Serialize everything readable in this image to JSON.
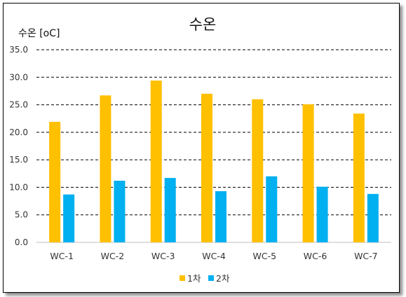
{
  "chart_data": {
    "type": "bar",
    "title": "수온",
    "ylabel": "수온 [oC]",
    "xlabel": "",
    "categories": [
      "WC-1",
      "WC-2",
      "WC-3",
      "WC-4",
      "WC-5",
      "WC-6",
      "WC-7"
    ],
    "series": [
      {
        "name": "1차",
        "color": "#FFC000",
        "values": [
          21.9,
          26.7,
          29.4,
          27.0,
          26.0,
          25.1,
          23.4
        ]
      },
      {
        "name": "2차",
        "color": "#00B0F0",
        "values": [
          8.7,
          11.2,
          11.7,
          9.3,
          12.0,
          10.1,
          8.8
        ]
      }
    ],
    "ylim": [
      0,
      35
    ],
    "yticks": [
      "0.0",
      "5.0",
      "10.0",
      "15.0",
      "20.0",
      "25.0",
      "30.0",
      "35.0"
    ],
    "grid": "dashed horizontal",
    "legend": "bottom"
  }
}
